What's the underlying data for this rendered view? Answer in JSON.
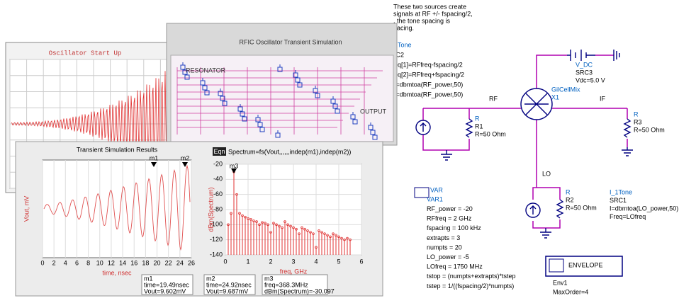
{
  "startup_window": {
    "title": "Oscillator Start Up"
  },
  "rfic_window": {
    "title": "RFIC Oscillator Transient Simulation",
    "labels": [
      "RESONATOR",
      "OUTPUT"
    ]
  },
  "results_window": {
    "title": "Transient Simulation Results",
    "transient_plot": {
      "y_label": "Vout, mV",
      "x_label": "time, nsec",
      "xlim": [
        0,
        26
      ],
      "xticks": [
        0,
        2,
        4,
        6,
        8,
        10,
        12,
        14,
        16,
        18,
        20,
        22,
        24,
        26
      ],
      "markers": [
        "m1",
        "m2"
      ]
    },
    "spectrum_plot": {
      "equation_tag": "Eqn",
      "equation": "Spectrum=fs(Vout,,,,,,indep(m1),indep(m2))",
      "y_label": "dBm(Spectrum)",
      "x_label": "freq, GHz",
      "xlim": [
        0,
        6
      ],
      "xticks": [
        0,
        1,
        2,
        3,
        4,
        5,
        6
      ],
      "ylim": [
        -140,
        -20
      ],
      "yticks": [
        -20,
        -40,
        -60,
        -80,
        -100,
        -120,
        -140
      ],
      "marker": "m3",
      "freqs": [
        0.125,
        0.25,
        0.375,
        0.5,
        0.625,
        0.75,
        0.875,
        1,
        1.125,
        1.25,
        1.375,
        1.5,
        1.625,
        1.75,
        1.875,
        2,
        2.125,
        2.25,
        2.375,
        2.5,
        2.625,
        2.75,
        2.875,
        3,
        3.125,
        3.25,
        3.375,
        3.5,
        3.625,
        3.75,
        3.875,
        4,
        4.125,
        4.25,
        4.375,
        4.5,
        4.625,
        4.75,
        4.875,
        5,
        5.125,
        5.25,
        5.375,
        5.5
      ],
      "values": [
        -100,
        -85,
        -30,
        -60,
        -85,
        -88,
        -90,
        -92,
        -93,
        -95,
        -96,
        -100,
        -97,
        -98,
        -100,
        -110,
        -98,
        -100,
        -102,
        -104,
        -96,
        -100,
        -102,
        -104,
        -106,
        -112,
        -104,
        -106,
        -108,
        -110,
        -112,
        -130,
        -108,
        -110,
        -112,
        -114,
        -116,
        -112,
        -114,
        -116,
        -118,
        -120,
        -118,
        -120
      ]
    },
    "marker_readouts": [
      {
        "name": "m1",
        "lines": [
          "time=19.49nsec",
          "Vout=9.602mV"
        ]
      },
      {
        "name": "m2",
        "lines": [
          "time=24.92nsec",
          "Vout=9.687mV"
        ]
      },
      {
        "name": "m3",
        "lines": [
          "freq=368.3MHz",
          "dBm(Spectrum)=-30.097"
        ]
      }
    ]
  },
  "schematic": {
    "note": [
      "These two sources create",
      "signals at RF +/- fspacing/2,",
      ", the tone spacing is",
      "pacing."
    ],
    "rf_source": [
      "1Tone",
      ":C2",
      "eq[1]=RFfreq-fspacing/2",
      "eq[2]=RFfreq+fspacing/2",
      "]=dbmtoa(RF_power,50)",
      "]=dbmtoa(RF_power,50)"
    ],
    "dc_source": [
      "V_DC",
      "SRC3",
      "Vdc=5.0 V"
    ],
    "mixer": [
      "GilCellMix",
      "X1"
    ],
    "ports": {
      "rf": "RF",
      "if": "IF",
      "lo": "LO"
    },
    "r1": [
      "R",
      "R1",
      "R=50 Ohm"
    ],
    "r3": [
      "R",
      "R3",
      "R=50 Ohm"
    ],
    "r2": [
      "R",
      "R2",
      "R=50 Ohm"
    ],
    "lo_source": [
      "I_1Tone",
      "SRC1",
      "I=dbmtoa(LO_power,50)",
      "Freq=LOfreq"
    ],
    "var_block": {
      "tag": "VAR",
      "lines": [
        "VAR1",
        "RF_power = -20",
        "RFfreq = 2 GHz",
        "fspacing = 100 kHz",
        "extrapts = 3",
        "numpts = 20",
        "LO_power = -5",
        "LOfreq = 1750 MHz",
        "tstop = (numpts+extrapts)*tstep",
        "tstep = 1/((fspacing/2)*numpts)"
      ]
    },
    "envelope": {
      "title": "ENVELOPE",
      "lines": [
        "Env1",
        "MaxOrder=4"
      ]
    }
  }
}
